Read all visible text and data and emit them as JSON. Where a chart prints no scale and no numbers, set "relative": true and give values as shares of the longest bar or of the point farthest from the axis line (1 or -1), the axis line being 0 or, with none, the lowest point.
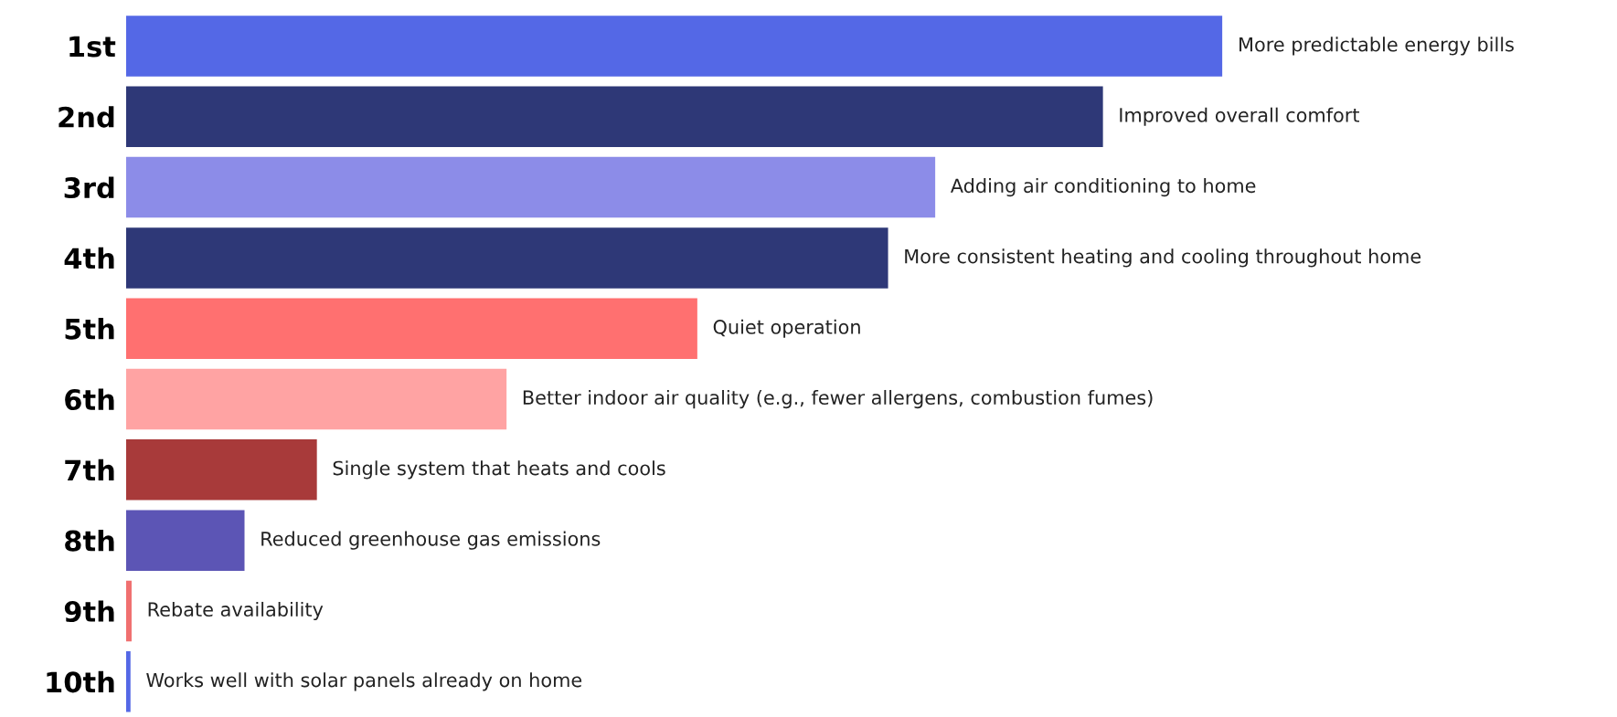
{
  "chart_data": {
    "type": "bar",
    "orientation": "horizontal",
    "relative": true,
    "categories": [
      "1st",
      "2nd",
      "3rd",
      "4th",
      "5th",
      "6th",
      "7th",
      "8th",
      "9th",
      "10th"
    ],
    "values": [
      1,
      0.891,
      0.738,
      0.695,
      0.521,
      0.347,
      0.174,
      0.108,
      0.005,
      0.004
    ],
    "colors": [
      "#5468e6",
      "#2e3877",
      "#8c8ce8",
      "#2e3877",
      "#ff7070",
      "#ffa3a3",
      "#a83a3a",
      "#5c55b5",
      "#f07070",
      "#5468e6"
    ],
    "annotations": [
      {
        "text": "More predictable energy bills",
        "x": 1,
        "y": "1st"
      },
      {
        "text": "Improved overall comfort",
        "x": 0.891,
        "y": "2nd"
      },
      {
        "text": "Adding air conditioning to home",
        "x": 0.738,
        "y": "3rd"
      },
      {
        "text": "More consistent heating and cooling throughout home",
        "x": 0.695,
        "y": "4th"
      },
      {
        "text": "Quiet operation",
        "x": 0.521,
        "y": "5th"
      },
      {
        "text": "Better indoor air quality (e.g., fewer allergens, combustion fumes)",
        "x": 0.347,
        "y": "6th"
      },
      {
        "text": "Single system that heats and cools",
        "x": 0.174,
        "y": "7th"
      },
      {
        "text": "Reduced greenhouse gas emissions",
        "x": 0.108,
        "y": "8th"
      },
      {
        "text": "Rebate availability",
        "x": 0.005,
        "y": "9th"
      },
      {
        "text": "Works well with solar panels already on home",
        "x": 0.004,
        "y": "10th"
      }
    ]
  }
}
